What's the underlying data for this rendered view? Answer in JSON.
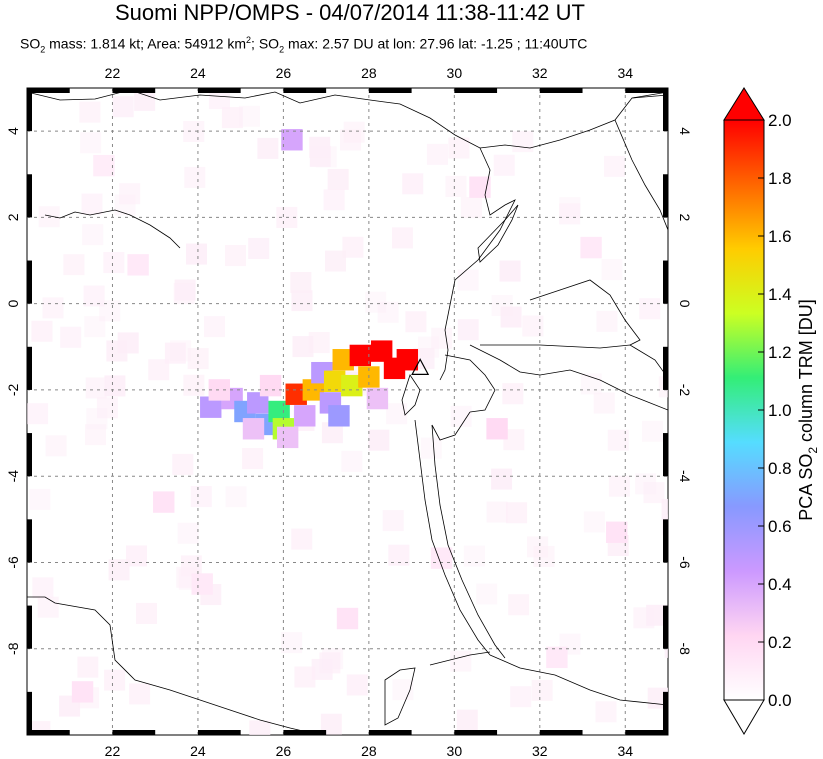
{
  "header": {
    "title": "Suomi NPP/OMPS - 04/07/2014 11:38-11:42 UT",
    "subtitle": {
      "mass_prefix": "SO",
      "mass_sub": "2",
      "mass_text": " mass: 1.814 kt; Area: 54912 km",
      "area_sup": "2",
      "max_prefix": "; SO",
      "max_sub": "2",
      "max_text": " max: 2.57 DU at lon: 27.96 lat: -1.25 ; 11:40UTC"
    }
  },
  "map": {
    "lon_range": [
      20,
      35
    ],
    "lat_range": [
      -10,
      5
    ],
    "lon_ticks": [
      "22",
      "24",
      "26",
      "28",
      "30",
      "32",
      "34"
    ],
    "lat_ticks": [
      "4",
      "2",
      "0",
      "-2",
      "-4",
      "-6",
      "-8"
    ],
    "volcano_marker": {
      "name": "triangle",
      "lon": 29.2,
      "lat": -1.5
    },
    "so2_pixels": [
      {
        "lon": 24.3,
        "lat": -2.4,
        "du": 0.5
      },
      {
        "lon": 24.8,
        "lat": -2.2,
        "du": 0.4
      },
      {
        "lon": 25.1,
        "lat": -2.5,
        "du": 0.7
      },
      {
        "lon": 25.4,
        "lat": -2.3,
        "du": 0.5
      },
      {
        "lon": 25.6,
        "lat": -2.8,
        "du": 0.7
      },
      {
        "lon": 25.9,
        "lat": -2.5,
        "du": 1.1
      },
      {
        "lon": 26.0,
        "lat": -2.9,
        "du": 1.3
      },
      {
        "lon": 26.3,
        "lat": -2.1,
        "du": 1.9
      },
      {
        "lon": 26.7,
        "lat": -2.0,
        "du": 1.6
      },
      {
        "lon": 26.9,
        "lat": -1.6,
        "du": 0.5
      },
      {
        "lon": 27.1,
        "lat": -2.3,
        "du": 0.5
      },
      {
        "lon": 27.2,
        "lat": -1.8,
        "du": 1.5
      },
      {
        "lon": 27.4,
        "lat": -1.3,
        "du": 1.6
      },
      {
        "lon": 27.6,
        "lat": -1.9,
        "du": 1.4
      },
      {
        "lon": 27.8,
        "lat": -1.2,
        "du": 2.0
      },
      {
        "lon": 28.0,
        "lat": -1.7,
        "du": 1.6
      },
      {
        "lon": 28.3,
        "lat": -1.1,
        "du": 2.0
      },
      {
        "lon": 28.6,
        "lat": -1.5,
        "du": 2.0
      },
      {
        "lon": 28.9,
        "lat": -1.3,
        "du": 2.0
      },
      {
        "lon": 27.3,
        "lat": -2.6,
        "du": 0.6
      },
      {
        "lon": 26.5,
        "lat": -2.6,
        "du": 0.4
      },
      {
        "lon": 25.3,
        "lat": -2.9,
        "du": 0.3
      },
      {
        "lon": 26.1,
        "lat": -3.1,
        "du": 0.3
      },
      {
        "lon": 24.5,
        "lat": -2.0,
        "du": 0.2
      },
      {
        "lon": 28.2,
        "lat": -2.2,
        "du": 0.3
      },
      {
        "lon": 25.7,
        "lat": -1.9,
        "du": 0.2
      },
      {
        "lon": 26.2,
        "lat": 3.8,
        "du": 0.4
      },
      {
        "lon": 31.0,
        "lat": -2.9,
        "du": 0.2
      },
      {
        "lon": 23.2,
        "lat": -4.6,
        "du": 0.15
      },
      {
        "lon": 30.6,
        "lat": 2.7,
        "du": 0.15
      },
      {
        "lon": 33.8,
        "lat": -5.3,
        "du": 0.15
      },
      {
        "lon": 21.3,
        "lat": -9.0,
        "du": 0.15
      },
      {
        "lon": 27.5,
        "lat": -7.3,
        "du": 0.15
      },
      {
        "lon": 22.6,
        "lat": 0.9,
        "du": 0.12
      },
      {
        "lon": 32.4,
        "lat": -8.2,
        "du": 0.12
      },
      {
        "lon": 24.1,
        "lat": -6.5,
        "du": 0.12
      },
      {
        "lon": 29.7,
        "lat": -5.9,
        "du": 0.12
      },
      {
        "lon": 21.8,
        "lat": 3.2,
        "du": 0.1
      },
      {
        "lon": 33.2,
        "lat": 1.3,
        "du": 0.12
      }
    ]
  },
  "colorbar": {
    "label_main": "PCA SO",
    "label_sub": "2",
    "label_tail": " column TRM [DU]",
    "ticks": [
      "2.0",
      "1.8",
      "1.6",
      "1.4",
      "1.2",
      "1.0",
      "0.8",
      "0.6",
      "0.4",
      "0.2",
      "0.0"
    ],
    "range": [
      0.0,
      2.0
    ],
    "stops": [
      "#ffffff",
      "#ffd6f2",
      "#cc99ff",
      "#8899ff",
      "#55ddff",
      "#33ee77",
      "#ccff22",
      "#ffcc00",
      "#ff6600",
      "#ff0000"
    ]
  }
}
